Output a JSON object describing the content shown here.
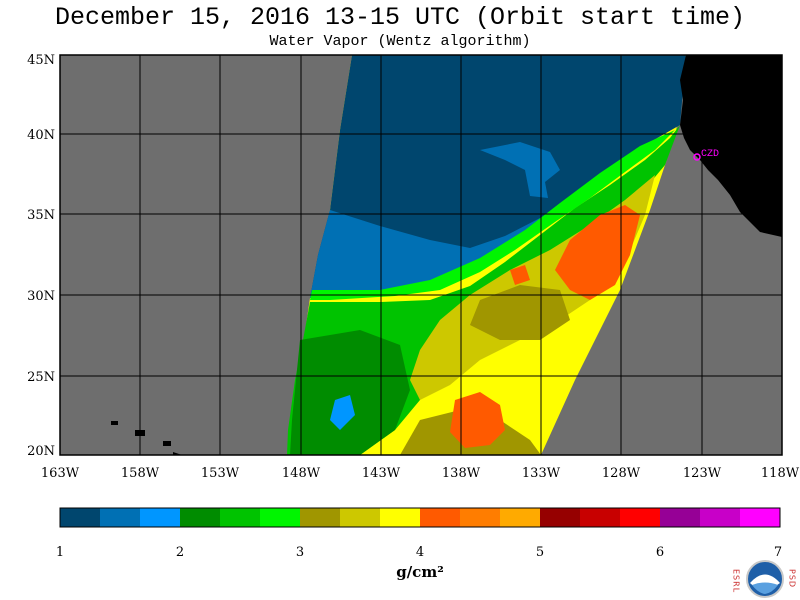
{
  "title": "December 15, 2016  13-15 UTC  (Orbit start time)",
  "subtitle": "Water Vapor (Wentz algorithm)",
  "lat_labels": [
    "45N",
    "40N",
    "35N",
    "30N",
    "25N",
    "20N"
  ],
  "lon_labels": [
    "163W",
    "158W",
    "153W",
    "148W",
    "143W",
    "138W",
    "133W",
    "128W",
    "123W",
    "118W"
  ],
  "station_label": "CZD",
  "colorbar": {
    "colors": [
      "#00466e",
      "#0070b4",
      "#0096ff",
      "#008c00",
      "#00c300",
      "#00f500",
      "#a09600",
      "#cdc800",
      "#ffff00",
      "#ff5a00",
      "#ff7d00",
      "#ffaa00",
      "#960000",
      "#c80000",
      "#ff0000",
      "#960096",
      "#c800c8",
      "#ff00ff"
    ],
    "tick_labels": [
      "1",
      "2",
      "3",
      "4",
      "5",
      "6",
      "7"
    ],
    "unit": "g/cm²"
  },
  "logo": {
    "left_letters": "ESRL",
    "right_letters": "PSD",
    "emblem": "noaa-logo"
  },
  "colors": {
    "no_data": "#6e6e6e",
    "land": "#000000",
    "station": "#ff00ff"
  }
}
